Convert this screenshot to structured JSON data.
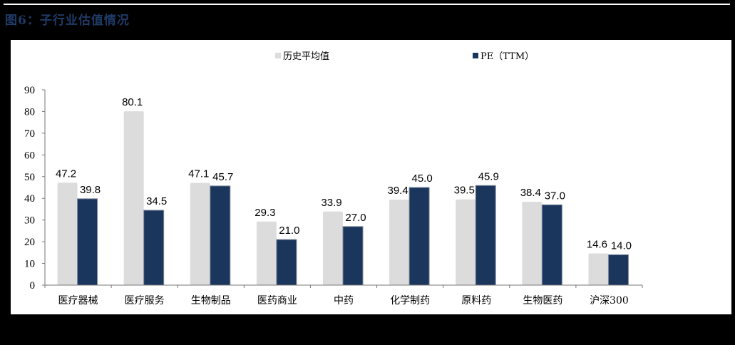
{
  "title": "图6：子行业估值情况",
  "colors": {
    "hist": "#dcdcdc",
    "pe": "#1b365d",
    "title": "#1f3b68"
  },
  "chart_data": {
    "type": "bar",
    "title": "图6：子行业估值情况",
    "xlabel": "",
    "ylabel": "",
    "ylim": [
      0,
      90
    ],
    "yticks": [
      0,
      10,
      20,
      30,
      40,
      50,
      60,
      70,
      80,
      90
    ],
    "grid": false,
    "legend_position": "top",
    "categories": [
      "医疗器械",
      "医疗服务",
      "生物制品",
      "医药商业",
      "中药",
      "化学制药",
      "原料药",
      "生物医药",
      "沪深300"
    ],
    "series": [
      {
        "name": "历史平均值",
        "values": [
          47.2,
          80.1,
          47.1,
          29.3,
          33.9,
          39.4,
          39.5,
          38.4,
          14.6
        ]
      },
      {
        "name": "PE（TTM）",
        "values": [
          39.8,
          34.5,
          45.7,
          21.0,
          27.0,
          45.0,
          45.9,
          37.0,
          14.0
        ]
      }
    ]
  }
}
